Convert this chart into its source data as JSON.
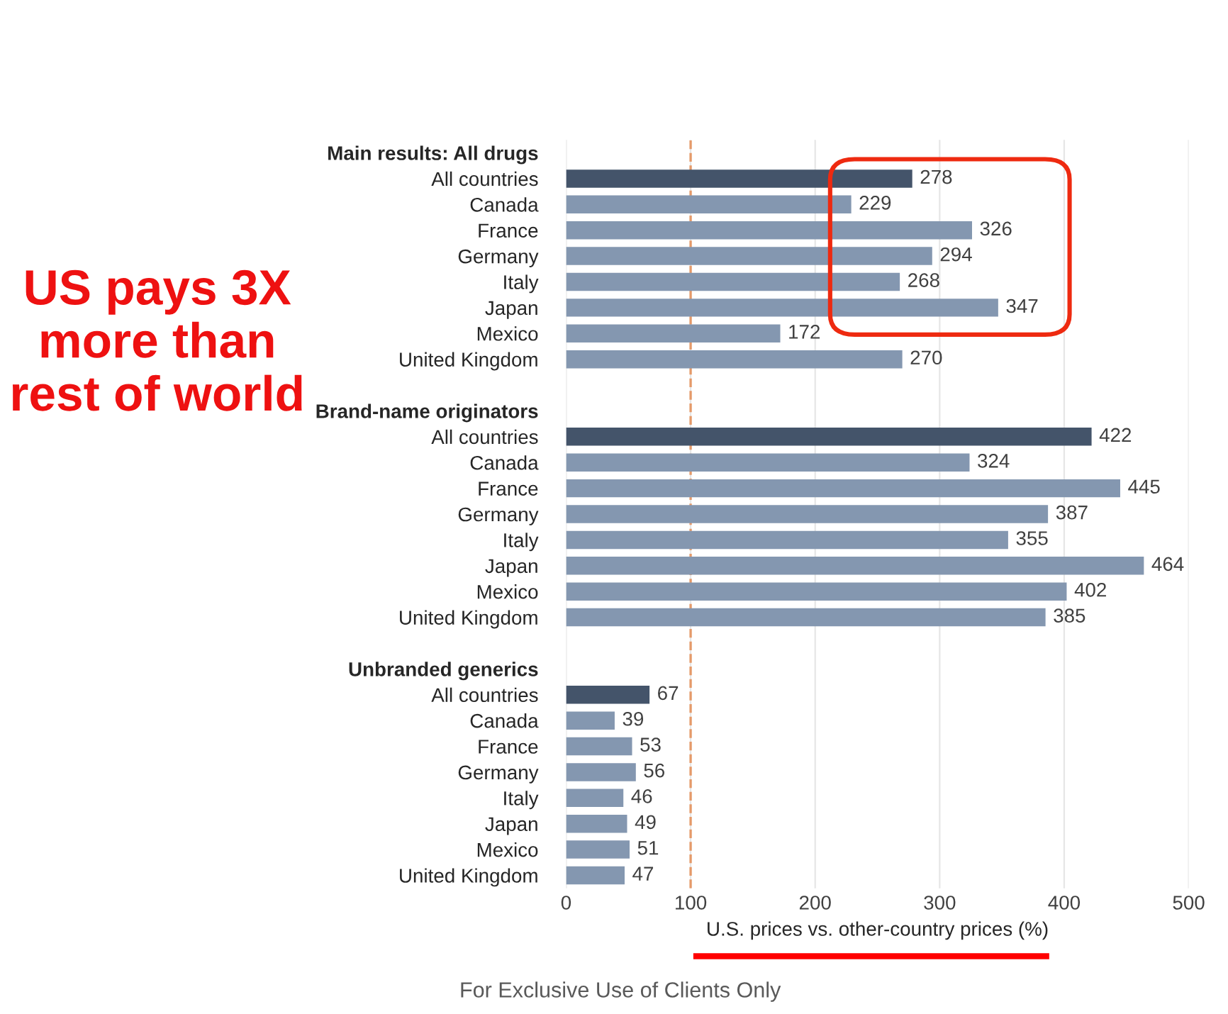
{
  "chart_data": {
    "type": "bar",
    "orientation": "horizontal",
    "categories": [
      "Main results: All drugs",
      "All countries",
      "Canada",
      "France",
      "Germany",
      "Italy",
      "Japan",
      "Mexico",
      "United Kingdom",
      null,
      "Brand-name originators",
      "All countries",
      "Canada",
      "France",
      "Germany",
      "Italy",
      "Japan",
      "Mexico",
      "United Kingdom",
      null,
      "Unbranded generics",
      "All countries",
      "Canada",
      "France",
      "Germany",
      "Italy",
      "Japan",
      "Mexico",
      "United Kingdom"
    ],
    "values": [
      null,
      278,
      229,
      326,
      294,
      268,
      347,
      172,
      270,
      null,
      null,
      422,
      324,
      445,
      387,
      355,
      464,
      402,
      385,
      null,
      null,
      67,
      39,
      53,
      56,
      46,
      49,
      51,
      47
    ],
    "colors": [
      "#8497b0",
      "#44546a",
      "#8497b0",
      "#8497b0",
      "#8497b0",
      "#8497b0",
      "#8497b0",
      "#8497b0",
      "#8497b0",
      "#8497b0",
      "#8497b0",
      "#44546a",
      "#8497b0",
      "#8497b0",
      "#8497b0",
      "#8497b0",
      "#8497b0",
      "#8497b0",
      "#8497b0",
      "#8497b0",
      "#8497b0",
      "#44546a",
      "#8497b0",
      "#8497b0",
      "#8497b0",
      "#8497b0",
      "#8497b0",
      "#8497b0",
      "#8497b0"
    ],
    "xlim": [
      0,
      500
    ],
    "xticks": [
      0,
      100,
      200,
      300,
      400,
      500
    ],
    "xlabel": "U.S. prices vs. other-country prices (%)",
    "data_labels": true,
    "grid": "x",
    "ref_lines": [
      {
        "axis": "x",
        "value": 100,
        "label": null,
        "color": "#e59a6a",
        "line_style": "dashed"
      }
    ],
    "annotations": [
      "US pays 3X\nmore than\nrest of world",
      "For Exclusive Use of Clients Only"
    ]
  }
}
